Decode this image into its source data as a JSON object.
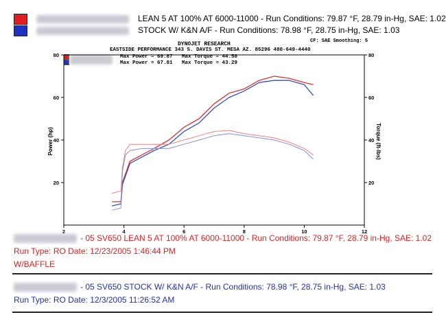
{
  "legend": {
    "run1": {
      "text": "LEAN 5  AT 100%  AT 6000-11000  -  Run Conditions: 79.87 °F, 28.79 in-Hg, SAE: 1.02",
      "color": "#e02020"
    },
    "run2": {
      "text": "STOCK W/ K&N A/F  -  Run Conditions: 78.98 °F, 28.75 in-Hg, SAE: 1.03",
      "color": "#2030c0"
    }
  },
  "chart_header": {
    "settings": "CF: SAE  Smoothing: 5",
    "company": "DYNOJET RESEARCH",
    "address": "EASTSIDE PERFORMANCE 343 S. DAVIS ST. MESA AZ. 85296  480-649-4440",
    "run1_power": "Max Power = 69.87",
    "run1_torque": "Max Torque = 44.58",
    "run2_power": "Max Power = 67.81",
    "run2_torque": "Max Torque = 43.29"
  },
  "chart_data": {
    "type": "line",
    "xlabel": "",
    "ylabel": "Power (hp)",
    "y2label": "Torque (ft-lbs)",
    "xlim": [
      2,
      12
    ],
    "ylim": [
      0,
      80
    ],
    "y2lim": [
      0,
      80
    ],
    "xticks": [
      2,
      4,
      6,
      8,
      10,
      12
    ],
    "yticks": [
      20,
      40,
      60,
      80
    ],
    "y2ticks": [
      20,
      40,
      60,
      80
    ],
    "grid": false,
    "series": [
      {
        "name": "LEAN 5 AT 100% AT 6000-11000 (Power)",
        "color": "#e03030",
        "x": [
          3.6,
          3.9,
          3.95,
          4.05,
          4.2,
          4.6,
          5.0,
          5.5,
          6.0,
          6.5,
          7.0,
          7.5,
          8.0,
          8.5,
          9.0,
          9.5,
          10.0,
          10.3
        ],
        "y": [
          11,
          11,
          20,
          24,
          30,
          33,
          36,
          40,
          46,
          50,
          57,
          62,
          64,
          68,
          70,
          69,
          67,
          66
        ]
      },
      {
        "name": "STOCK W/ K&N A/F (Power)",
        "color": "#3050c0",
        "x": [
          3.6,
          3.9,
          3.95,
          4.05,
          4.2,
          4.6,
          5.0,
          5.5,
          6.0,
          6.5,
          7.0,
          7.5,
          8.0,
          8.5,
          9.0,
          9.5,
          10.0,
          10.3
        ],
        "y": [
          9,
          10,
          19,
          23,
          29,
          32,
          35,
          38,
          44,
          48,
          55,
          60,
          63,
          67,
          68,
          68,
          66,
          61
        ]
      },
      {
        "name": "LEAN 5 AT 100% AT 6000-11000 (Torque)",
        "color": "#f08080",
        "x": [
          3.6,
          3.9,
          3.95,
          4.05,
          4.2,
          4.6,
          5.0,
          5.5,
          6.0,
          6.5,
          7.0,
          7.5,
          8.0,
          8.5,
          9.0,
          9.5,
          10.0,
          10.3
        ],
        "y": [
          15,
          16,
          27,
          35,
          38,
          38,
          38,
          38,
          40,
          42,
          44,
          44.5,
          43,
          42,
          41,
          39,
          36,
          33
        ]
      },
      {
        "name": "STOCK W/ K&N A/F (Torque)",
        "color": "#8090e0",
        "x": [
          3.6,
          3.9,
          3.95,
          4.05,
          4.2,
          4.6,
          5.0,
          5.5,
          6.0,
          6.5,
          7.0,
          7.5,
          8.0,
          8.5,
          9.0,
          9.5,
          10.0,
          10.3
        ],
        "y": [
          7,
          8,
          25,
          33,
          35,
          36,
          36,
          36,
          38,
          40,
          42,
          43,
          42,
          41,
          40,
          38,
          35,
          31
        ]
      }
    ]
  },
  "runs": [
    {
      "title": "- 05 SV650 LEAN 5 AT 100% AT 6000-11000 -  Run Conditions: 79.87 °F, 28.79 in-Hg, SAE: 1.02",
      "info": "Run Type: RO  Date: 12/23/2005 1:46:44 PM",
      "extra": "W/BAFFLE"
    },
    {
      "title": "- 05 SV650 STOCK W/ K&N A/F  -  Run Conditions: 78.98 °F, 28.75 in-Hg, SAE: 1.03",
      "info": "Run Type: RO  Date: 12/3/2005 11:26:52 AM"
    }
  ]
}
